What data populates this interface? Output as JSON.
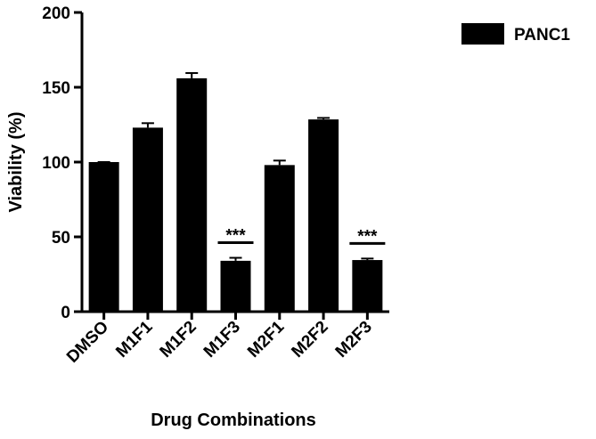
{
  "chart_data": {
    "type": "bar",
    "x_label": "Drug Combinations",
    "y_label": "Viability (%)",
    "categories": [
      "DMSO",
      "M1F1",
      "M1F2",
      "M1F3",
      "M2F1",
      "M2F2",
      "M2F3"
    ],
    "series": [
      {
        "name": "PANC1",
        "color": "#000000",
        "values": [
          100,
          123,
          156,
          34,
          98,
          128.5,
          34.5
        ],
        "errors": [
          0,
          3,
          3.5,
          2,
          3,
          1,
          1
        ]
      }
    ],
    "significance": [
      null,
      null,
      null,
      "***",
      null,
      null,
      "***"
    ],
    "ylim": [
      0,
      200
    ],
    "yticks": [
      0,
      50,
      100,
      150,
      200
    ],
    "legend": "top-right",
    "grid": false
  }
}
